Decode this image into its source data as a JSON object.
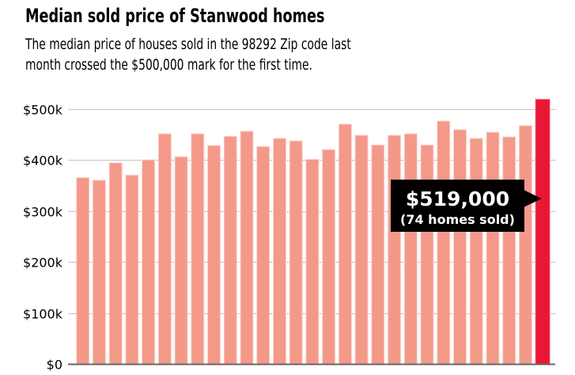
{
  "colors": {
    "bar": "#F4998A",
    "highlight_bar": "#E91635",
    "gridline": "#888888",
    "baseline": "#666666",
    "callout_bg": "#000000",
    "callout_text": "#FFFFFF"
  },
  "chart_data": {
    "type": "bar",
    "title": "Median sold price of Stanwood homes",
    "subtitle": [
      "The median price of houses sold in the 98292 Zip code last",
      "month crossed the $500,000 mark for the first time."
    ],
    "xlabel": "",
    "ylabel": "",
    "ylim": [
      0,
      500000
    ],
    "grid": true,
    "y_ticks": [
      {
        "value": 0,
        "label": "$0"
      },
      {
        "value": 100000,
        "label": "$100k"
      },
      {
        "value": 200000,
        "label": "$200k"
      },
      {
        "value": 300000,
        "label": "$300k"
      },
      {
        "value": 400000,
        "label": "$400k"
      },
      {
        "value": 500000,
        "label": "$500k"
      }
    ],
    "categories": [],
    "values": [
      365000,
      360000,
      394000,
      370000,
      400000,
      451000,
      406000,
      451000,
      428000,
      446000,
      456000,
      426000,
      442000,
      437000,
      401000,
      420000,
      470000,
      448000,
      429000,
      448000,
      451000,
      429000,
      476000,
      459000,
      442000,
      454000,
      445000,
      467000,
      519000
    ],
    "highlight_index": 28,
    "annotation": {
      "value_label": "$519,000",
      "detail_label": "(74 homes sold)",
      "target_index": 28
    }
  }
}
